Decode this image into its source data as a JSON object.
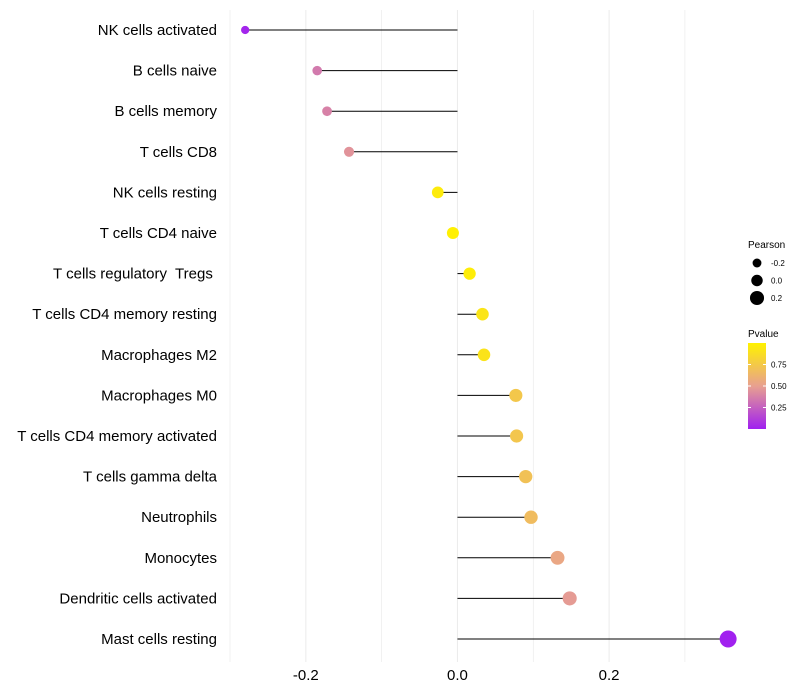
{
  "chart_data": {
    "type": "lollipop",
    "title": "",
    "xlabel": "",
    "ylabel": "",
    "xlim": [
      -0.3,
      0.37
    ],
    "x_ticks": [
      -0.2,
      0.0,
      0.2
    ],
    "x_tick_labels": [
      "-0.2",
      "0.0",
      "0.2"
    ],
    "grid": true,
    "categories": [
      "NK cells activated",
      "B cells naive",
      "B cells memory",
      "T cells CD8",
      "NK cells resting",
      "T cells CD4 naive",
      "T cells regulatory  Tregs ",
      "T cells CD4 memory resting",
      "Macrophages M2",
      "Macrophages M0",
      "T cells CD4 memory activated",
      "T cells gamma delta",
      "Neutrophils",
      "Monocytes",
      "Dendritic cells activated",
      "Mast cells resting"
    ],
    "pearson": [
      -0.28,
      -0.185,
      -0.172,
      -0.143,
      -0.026,
      -0.006,
      0.016,
      0.033,
      0.035,
      0.077,
      0.078,
      0.09,
      0.097,
      0.132,
      0.148,
      0.357
    ],
    "pvalue": [
      0.02,
      0.35,
      0.38,
      0.45,
      0.96,
      0.99,
      0.97,
      0.92,
      0.91,
      0.74,
      0.73,
      0.7,
      0.67,
      0.54,
      0.48,
      0.005
    ],
    "legend_size": {
      "title": "Pearson",
      "labels": [
        "-0.2",
        "0.0",
        "0.2"
      ],
      "values": [
        -0.2,
        0.0,
        0.2
      ]
    },
    "legend_color": {
      "title": "Pvalue",
      "tick_labels": [
        "0.75",
        "0.50",
        "0.25"
      ],
      "tick_values": [
        0.75,
        0.5,
        0.25
      ],
      "range": [
        0.0,
        1.0
      ],
      "low_color": "#A020F0",
      "mid_color": "#E8A090",
      "high_color": "#FFF200"
    },
    "legend_position": "right",
    "colors": {
      "stem": "#000000",
      "grid": "#EBEBEB",
      "text": "#000000",
      "axis_text": "#1A1A1A"
    }
  }
}
